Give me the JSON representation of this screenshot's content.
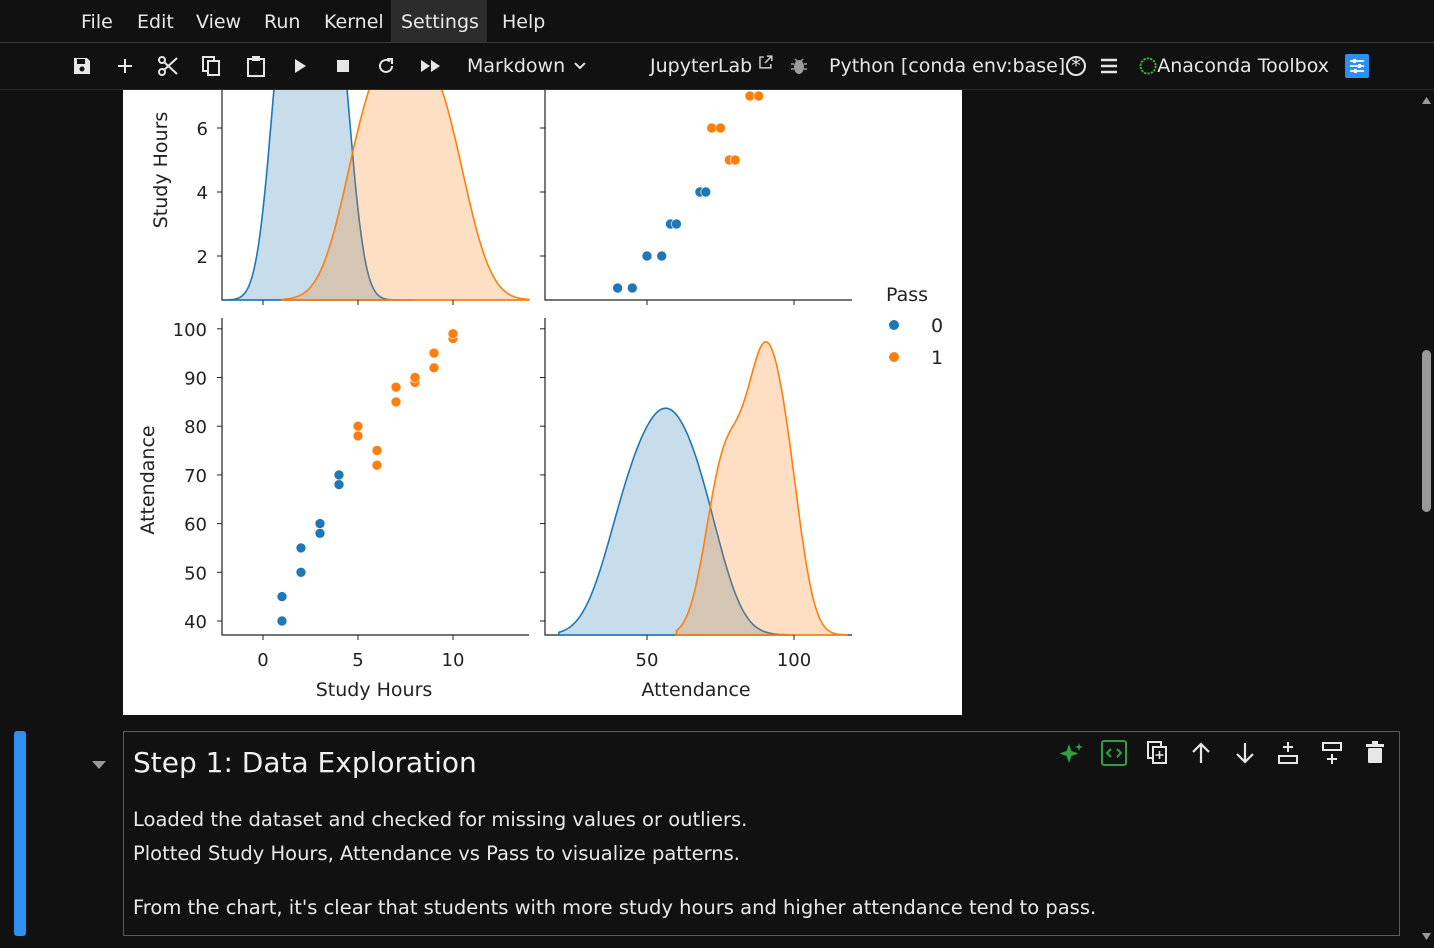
{
  "menu": [
    "File",
    "Edit",
    "View",
    "Run",
    "Kernel",
    "Settings",
    "Help"
  ],
  "toolbar": {
    "cell_type": "Markdown",
    "jupyterlab": "JupyterLab",
    "kernel": "Python [conda env:base] *",
    "anaconda": "Anaconda Toolbox"
  },
  "cell": {
    "heading": "Step 1: Data Exploration",
    "line1": "Loaded the dataset and checked for missing values or outliers.",
    "line2": "Plotted Study Hours, Attendance vs Pass to visualize patterns.",
    "line3": "From the chart, it's clear that students with more study hours and higher attendance tend to pass."
  },
  "colors": {
    "accent": "#2d8ff0",
    "class0": "#1f77b4",
    "class1": "#ff7f0e",
    "ai": "#2ea043"
  },
  "icons": [
    "save-icon",
    "add-cell-icon",
    "cut-icon",
    "copy-icon",
    "paste-icon",
    "run-icon",
    "stop-icon",
    "restart-icon",
    "run-all-icon",
    "external-link-icon",
    "debugger-icon",
    "kernel-idle-icon",
    "menu-icon",
    "anaconda-icon",
    "settings-icon"
  ],
  "chart_data": {
    "type": "scatter",
    "legend_title": "Pass",
    "legend": [
      "0",
      "1"
    ],
    "legend_position": "right",
    "variables": [
      "Study Hours",
      "Attendance"
    ],
    "x_ticks_study": [
      "0",
      "5",
      "10"
    ],
    "x_ticks_att": [
      "50",
      "100"
    ],
    "y_ticks_study": [
      "2",
      "4",
      "6"
    ],
    "y_ticks_att": [
      "40",
      "50",
      "60",
      "70",
      "80",
      "90",
      "100"
    ],
    "xlabel_left": "Study Hours",
    "xlabel_right": "Attendance",
    "ylabel_top": "Study Hours",
    "ylabel_bottom": "Attendance",
    "series": [
      {
        "name": "0",
        "points": [
          [
            1,
            40
          ],
          [
            1,
            45
          ],
          [
            2,
            50
          ],
          [
            2,
            55
          ],
          [
            3,
            58
          ],
          [
            3,
            60
          ],
          [
            4,
            68
          ],
          [
            4,
            70
          ]
        ]
      },
      {
        "name": "1",
        "points": [
          [
            5,
            78
          ],
          [
            5,
            80
          ],
          [
            6,
            72
          ],
          [
            6,
            75
          ],
          [
            7,
            85
          ],
          [
            7,
            88
          ],
          [
            8,
            89
          ],
          [
            8,
            90
          ],
          [
            9,
            92
          ],
          [
            9,
            95
          ],
          [
            10,
            98
          ],
          [
            10,
            99
          ]
        ]
      }
    ]
  }
}
